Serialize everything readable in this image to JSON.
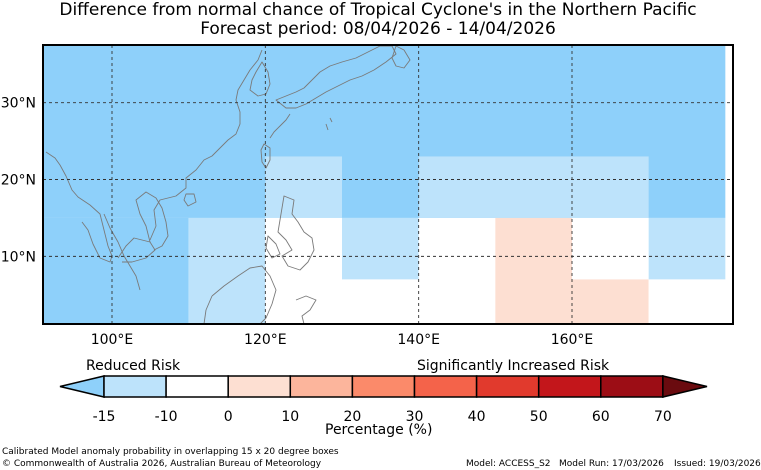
{
  "title": {
    "line1": "Difference from normal chance of Tropical Cyclone's in the Northern Pacific",
    "line2": "Forecast period: 08/04/2026 - 14/04/2026"
  },
  "map": {
    "lat_labels": [
      "30°N",
      "20°N",
      "10°N"
    ],
    "lon_labels": [
      "100°E",
      "120°E",
      "140°E",
      "160°E"
    ],
    "cells": [
      {
        "lon": [
          90,
          180
        ],
        "lat": [
          15,
          40
        ],
        "category": "below_-15"
      },
      {
        "lon": [
          90,
          110
        ],
        "lat": [
          0,
          15
        ],
        "category": "below_-15"
      },
      {
        "lon": [
          110,
          120
        ],
        "lat": [
          0,
          15
        ],
        "category": "-15_-10"
      },
      {
        "lon": [
          120,
          130
        ],
        "lat": [
          15,
          23
        ],
        "category": "-15_-10"
      },
      {
        "lon": [
          120,
          130
        ],
        "lat": [
          0,
          15
        ],
        "category": "-10_0"
      },
      {
        "lon": [
          130,
          140
        ],
        "lat": [
          7,
          15
        ],
        "category": "-15_-10"
      },
      {
        "lon": [
          130,
          140
        ],
        "lat": [
          0,
          7
        ],
        "category": "-10_0"
      },
      {
        "lon": [
          140,
          150
        ],
        "lat": [
          0,
          15
        ],
        "category": "-10_0"
      },
      {
        "lon": [
          140,
          170
        ],
        "lat": [
          15,
          23
        ],
        "category": "-15_-10"
      },
      {
        "lon": [
          150,
          160
        ],
        "lat": [
          0,
          15
        ],
        "category": "0_10"
      },
      {
        "lon": [
          160,
          170
        ],
        "lat": [
          7,
          15
        ],
        "category": "-10_0"
      },
      {
        "lon": [
          160,
          170
        ],
        "lat": [
          0,
          7
        ],
        "category": "0_10"
      },
      {
        "lon": [
          170,
          180
        ],
        "lat": [
          7,
          15
        ],
        "category": "-15_-10"
      },
      {
        "lon": [
          170,
          180
        ],
        "lat": [
          0,
          7
        ],
        "category": "-10_0"
      }
    ]
  },
  "legend": {
    "reduced_label": "Reduced Risk",
    "increased_label": "Significantly Increased Risk",
    "ticks": [
      "-15",
      "-10",
      "0",
      "10",
      "20",
      "30",
      "40",
      "50",
      "60",
      "70"
    ],
    "axis_label": "Percentage (%)",
    "colors": [
      "#8ed0fa",
      "#bde3fb",
      "#ffffff",
      "#fddfd2",
      "#fcb59c",
      "#fb8a6a",
      "#f4634a",
      "#e13a2d",
      "#c3161b",
      "#9c0d15",
      "#6a0b0f"
    ]
  },
  "footer": {
    "note": "Calibrated Model anomaly probability in overlapping 15 x 20 degree boxes",
    "copyright": "© Commonwealth of Australia 2026, Australian Bureau of Meteorology",
    "model": "Model: ACCESS_S2",
    "run": "Model Run: 17/03/2026",
    "issued": "Issued: 19/03/2026"
  }
}
